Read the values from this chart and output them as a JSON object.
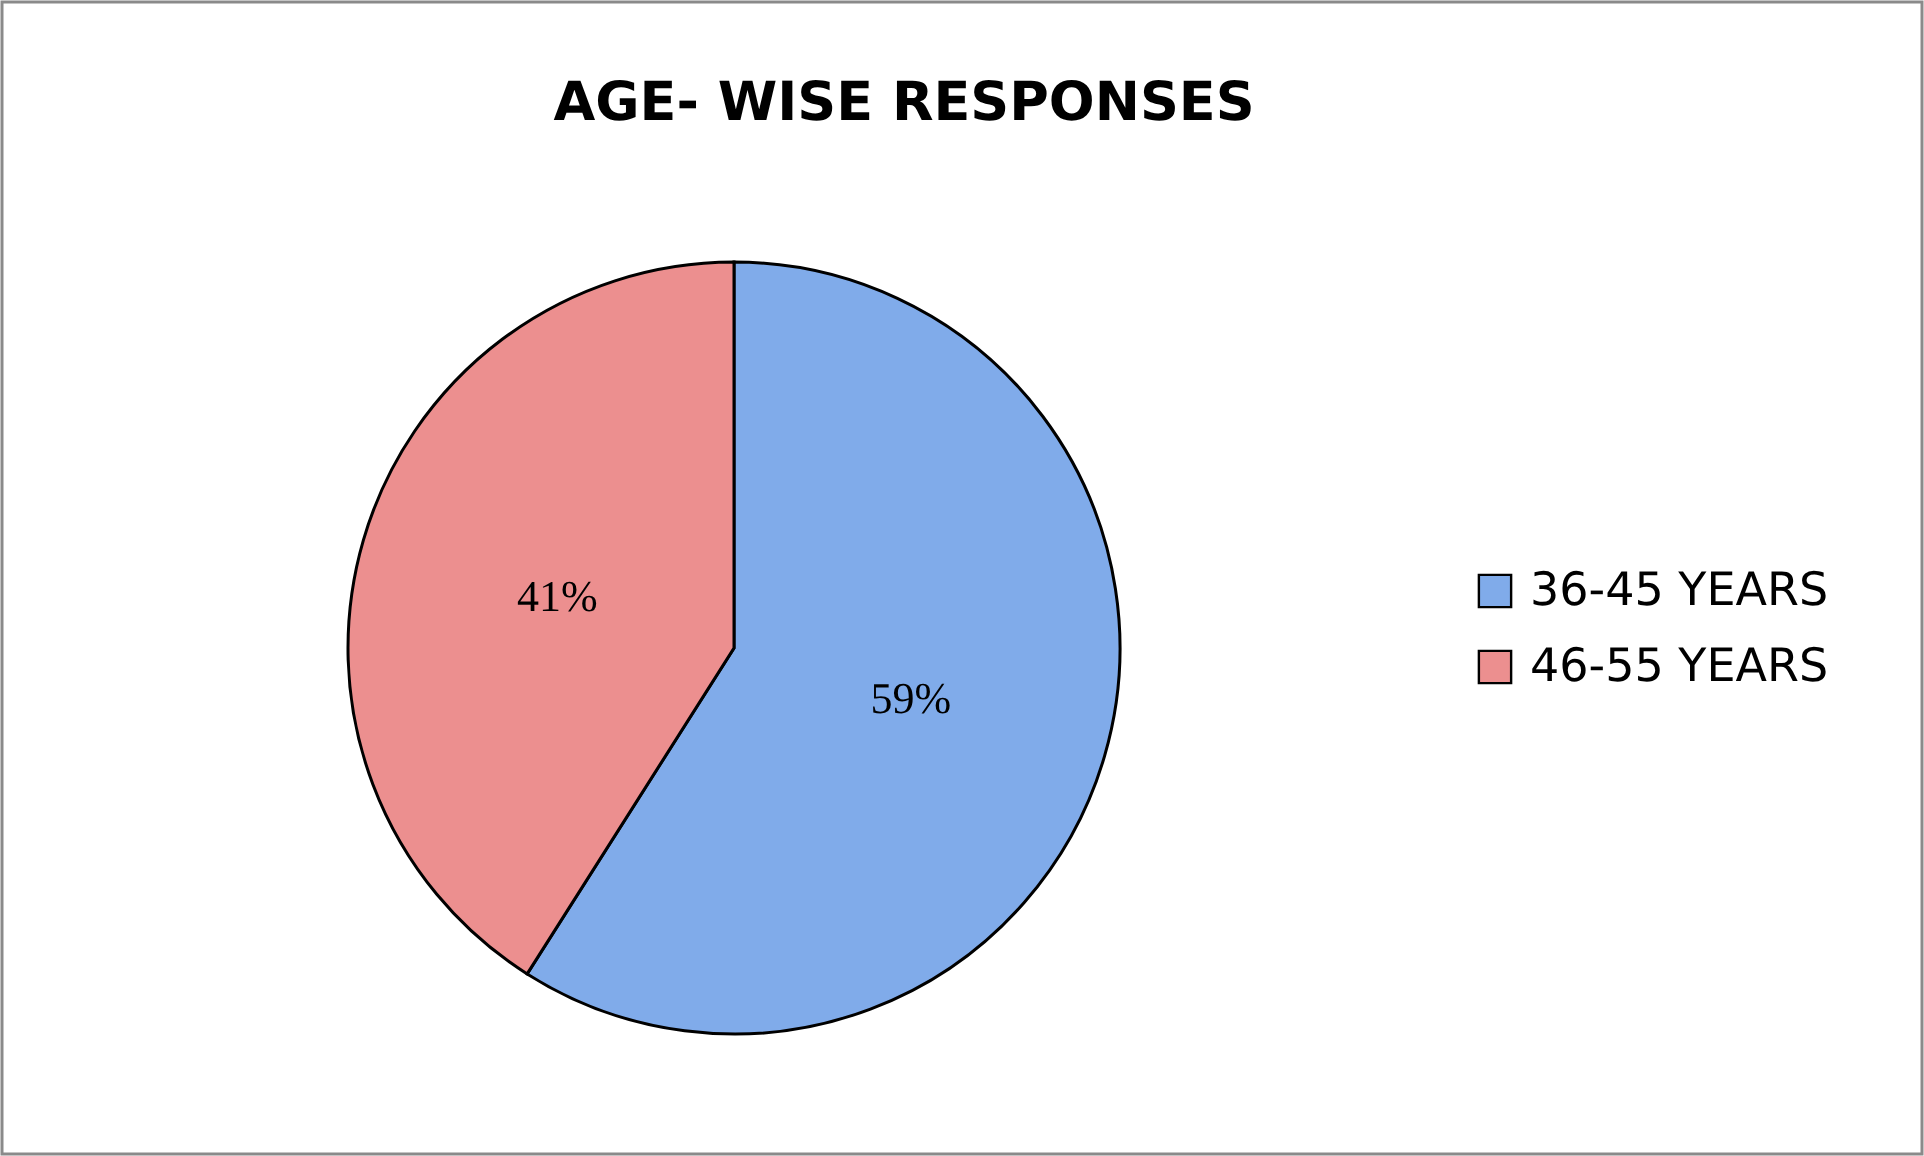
{
  "chart_data": {
    "type": "pie",
    "title": "AGE- WISE RESPONSES",
    "categories": [
      "36-45 YEARS",
      "46-55 YEARS"
    ],
    "values": [
      59,
      41
    ],
    "value_labels": [
      "59%",
      "41%"
    ],
    "colors": [
      "#80abea",
      "#ec8f8f"
    ],
    "legend": "right"
  }
}
